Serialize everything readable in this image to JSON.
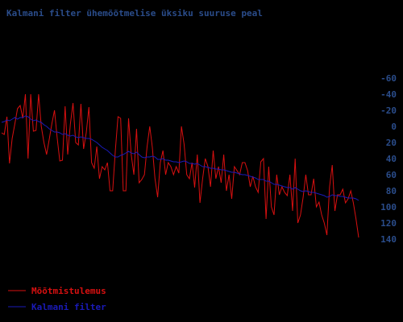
{
  "chart_data": {
    "type": "line",
    "title": "Kalmani filter ühemõõtmelise üksiku suuruse peal",
    "xlabel": "",
    "ylabel": "",
    "yaxis_position": "right",
    "y_inverted": true,
    "ylim": [
      -70,
      150
    ],
    "yticks": [
      -60,
      -40,
      -20,
      0,
      20,
      40,
      60,
      80,
      100,
      120,
      140
    ],
    "grid": false,
    "legend_position": "bottom-left",
    "colors": {
      "background": "#000000",
      "title": "#2a4c8a",
      "tick_labels": "#2a4c8a",
      "measurement": "#d81010",
      "filter": "#1a1ab8",
      "legend_measurement_text": "#d81010",
      "legend_filter_text": "#1a1ab8"
    },
    "series": [
      {
        "name": "Mõõtmistulemus",
        "values": [
          8,
          10,
          -12,
          46,
          15,
          -3,
          -22,
          -26,
          -10,
          -40,
          40,
          -40,
          6,
          5,
          -40,
          0,
          20,
          35,
          16,
          -3,
          -20,
          14,
          43,
          42,
          -25,
          35,
          -3,
          -29,
          20,
          23,
          -28,
          28,
          8,
          -24,
          45,
          52,
          25,
          65,
          50,
          54,
          45,
          80,
          80,
          30,
          -12,
          -10,
          80,
          80,
          -10,
          35,
          60,
          3,
          70,
          66,
          60,
          25,
          0,
          26,
          65,
          88,
          45,
          30,
          60,
          45,
          50,
          60,
          50,
          58,
          0,
          22,
          60,
          65,
          45,
          76,
          35,
          95,
          65,
          40,
          50,
          75,
          30,
          65,
          50,
          70,
          35,
          80,
          60,
          90,
          50,
          55,
          60,
          45,
          45,
          55,
          75,
          62,
          75,
          82,
          44,
          40,
          115,
          50,
          100,
          110,
          60,
          85,
          75,
          82,
          86,
          60,
          105,
          40,
          120,
          110,
          88,
          60,
          85,
          85,
          65,
          100,
          94,
          110,
          120,
          135,
          75,
          48,
          105,
          85,
          85,
          78,
          95,
          90,
          80,
          95,
          115,
          138
        ]
      },
      {
        "name": "Kalmani filter",
        "values": [
          -5,
          -6,
          -8,
          -7,
          -9,
          -11,
          -9,
          -11,
          -11,
          -13,
          -12,
          -9,
          -7,
          -8,
          -6,
          -5,
          -2,
          0,
          3,
          5,
          7,
          7,
          8,
          10,
          9,
          11,
          12,
          11,
          13,
          14,
          13,
          14,
          15,
          15,
          16,
          18,
          20,
          23,
          26,
          28,
          30,
          33,
          36,
          38,
          38,
          36,
          35,
          33,
          31,
          33,
          34,
          32,
          35,
          38,
          39,
          38,
          38,
          37,
          38,
          41,
          41,
          40,
          42,
          42,
          43,
          44,
          44,
          45,
          44,
          43,
          44,
          46,
          46,
          47,
          46,
          48,
          50,
          50,
          51,
          52,
          52,
          53,
          53,
          54,
          54,
          55,
          56,
          57,
          57,
          58,
          59,
          60,
          60,
          61,
          62,
          63,
          64,
          66,
          66,
          66,
          68,
          68,
          70,
          72,
          72,
          73,
          74,
          75,
          76,
          76,
          78,
          76,
          78,
          80,
          81,
          80,
          81,
          82,
          82,
          83,
          84,
          85,
          86,
          88,
          87,
          85,
          86,
          86,
          87,
          87,
          88,
          89,
          89,
          89,
          90,
          92
        ]
      }
    ]
  }
}
